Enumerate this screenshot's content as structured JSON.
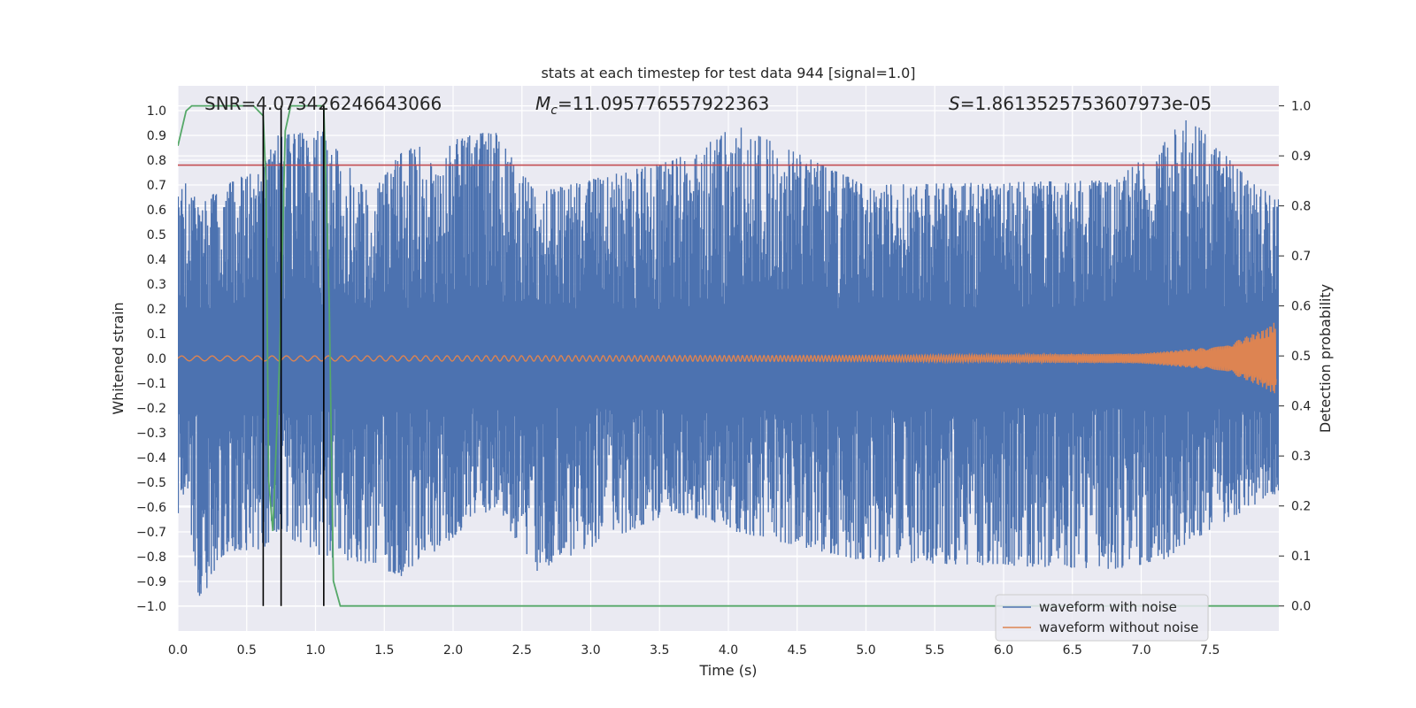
{
  "chart_data": {
    "type": "line",
    "title": "stats at each timestep for test data 944 [signal=1.0]",
    "xlabel": "Time (s)",
    "ylabel": "Whitened strain",
    "y2label": "Detection probability",
    "xlim": [
      0.0,
      8.0
    ],
    "ylim": [
      -1.1,
      1.1
    ],
    "y2lim": [
      -0.05,
      1.04
    ],
    "xticks": [
      "0.0",
      "0.5",
      "1.0",
      "1.5",
      "2.0",
      "2.5",
      "3.0",
      "3.5",
      "4.0",
      "4.5",
      "5.0",
      "5.5",
      "6.0",
      "6.5",
      "7.0",
      "7.5"
    ],
    "yticks": [
      "1.0",
      "0.9",
      "0.8",
      "0.7",
      "0.6",
      "0.5",
      "0.4",
      "0.3",
      "0.2",
      "0.1",
      "0.0",
      "−0.1",
      "−0.2",
      "−0.3",
      "−0.4",
      "−0.5",
      "−0.6",
      "−0.7",
      "−0.8",
      "−0.9",
      "−1.0"
    ],
    "y2ticks": [
      "1.0",
      "0.9",
      "0.8",
      "0.7",
      "0.6",
      "0.5",
      "0.4",
      "0.3",
      "0.2",
      "0.1",
      "0.0"
    ],
    "grid": true,
    "annotations": {
      "snr": "SNR=4.073426246643066",
      "mc_symbol": "M",
      "mc_sub": "c",
      "mc_value": "=11.095776557922363",
      "s_symbol": "S",
      "s_value": "=1.8613525753607973e-05"
    },
    "threshold_strain": 0.78,
    "detection_events": [
      0.62,
      0.75,
      1.06
    ],
    "series": [
      {
        "name": "waveform with noise",
        "color": "#4c72b0",
        "envelope_samples": [
          {
            "t": 0.0,
            "max": 0.65,
            "min": -0.65
          },
          {
            "t": 0.06,
            "max": 0.72,
            "min": -0.5
          },
          {
            "t": 0.15,
            "max": 0.62,
            "min": -1.0
          },
          {
            "t": 0.35,
            "max": 0.7,
            "min": -0.78
          },
          {
            "t": 0.62,
            "max": 0.78,
            "min": -0.77
          },
          {
            "t": 0.72,
            "max": 0.9,
            "min": -0.7
          },
          {
            "t": 1.05,
            "max": 0.92,
            "min": -0.8
          },
          {
            "t": 1.4,
            "max": 0.66,
            "min": -0.83
          },
          {
            "t": 1.62,
            "max": 0.84,
            "min": -0.88
          },
          {
            "t": 2.3,
            "max": 0.92,
            "min": -0.6
          },
          {
            "t": 2.6,
            "max": 0.67,
            "min": -0.86
          },
          {
            "t": 3.6,
            "max": 0.8,
            "min": -0.62
          },
          {
            "t": 4.06,
            "max": 0.94,
            "min": -0.7
          },
          {
            "t": 5.0,
            "max": 0.7,
            "min": -0.82
          },
          {
            "t": 6.8,
            "max": 0.72,
            "min": -0.85
          },
          {
            "t": 7.15,
            "max": 0.86,
            "min": -0.82
          },
          {
            "t": 7.33,
            "max": 0.98,
            "min": -0.75
          },
          {
            "t": 7.95,
            "max": 0.65,
            "min": -0.55
          }
        ]
      },
      {
        "name": "waveform without noise",
        "color": "#dd8452",
        "envelope_samples": [
          {
            "t": 0.0,
            "max": 0.01,
            "min": -0.01
          },
          {
            "t": 5.0,
            "max": 0.012,
            "min": -0.012
          },
          {
            "t": 7.0,
            "max": 0.02,
            "min": -0.02
          },
          {
            "t": 7.6,
            "max": 0.05,
            "min": -0.05
          },
          {
            "t": 7.9,
            "max": 0.12,
            "min": -0.1
          },
          {
            "t": 7.98,
            "max": 0.15,
            "min": -0.13
          }
        ]
      },
      {
        "name": "detection probability",
        "color": "#55a868",
        "axis": "right",
        "x": [
          0.0,
          0.06,
          0.1,
          0.55,
          0.62,
          0.64,
          0.66,
          0.69,
          0.74,
          0.78,
          0.82,
          1.06,
          1.1,
          1.13,
          1.18,
          8.0
        ],
        "y": [
          0.92,
          0.99,
          1.0,
          1.0,
          0.98,
          0.85,
          0.25,
          0.15,
          0.5,
          0.95,
          1.0,
          1.0,
          0.6,
          0.05,
          0.0,
          0.0
        ]
      }
    ],
    "colors": {
      "background": "#eaeaf2",
      "threshold": "#c44e52",
      "event": "#000000"
    },
    "legend": {
      "position": "lower-right",
      "entries": [
        "waveform with noise",
        "waveform without noise"
      ]
    }
  }
}
